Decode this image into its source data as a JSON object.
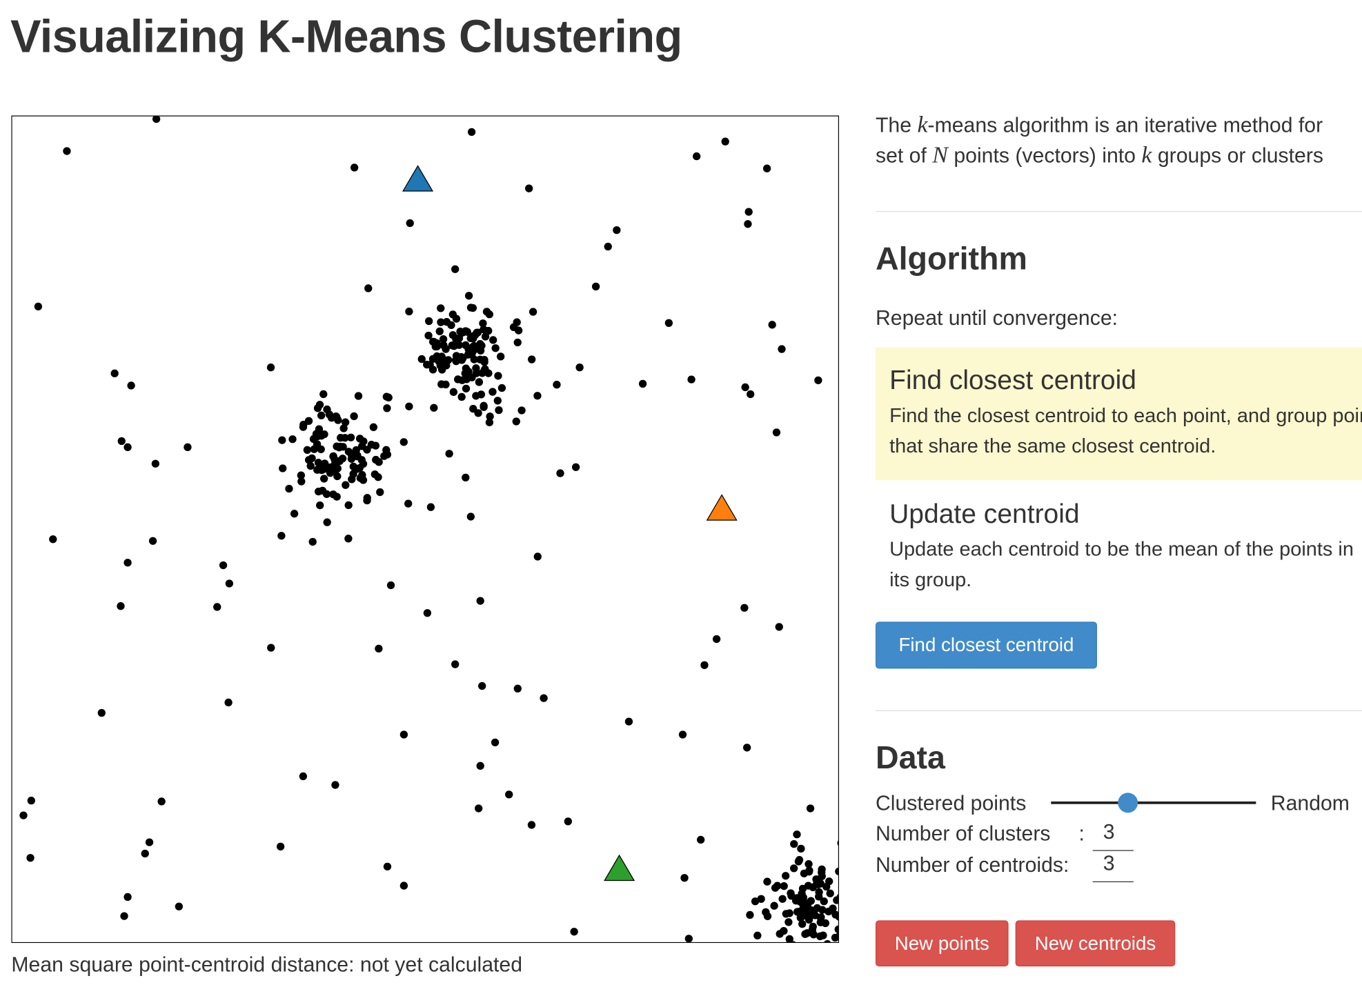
{
  "header": {
    "title": "Visualizing K-Means Clustering"
  },
  "intro": {
    "line1": [
      "The ",
      "k",
      "-means algorithm is an iterative method for"
    ],
    "line2": [
      "set of ",
      "N",
      " points (vectors) into ",
      "k",
      " groups or clusters"
    ]
  },
  "algorithm": {
    "heading": "Algorithm",
    "lead": "Repeat until convergence:",
    "steps": [
      {
        "title": "Find closest centroid",
        "text": "Find the closest centroid to each point, and group points that share the same closest centroid."
      },
      {
        "title": "Update centroid",
        "text": "Update each centroid to be the mean of the points in its group."
      }
    ],
    "button": "Find closest centroid"
  },
  "data": {
    "heading": "Data",
    "slider_left": "Clustered points",
    "slider_right": "Random",
    "clusters_label": "Number of clusters",
    "clusters_sep": ":",
    "clusters_value": 3,
    "centroids_label": "Number of centroids:",
    "centroids_value": 3,
    "buttons": [
      "New points",
      "New centroids"
    ]
  },
  "status": "Mean square point-centroid distance: not yet calculated"
}
